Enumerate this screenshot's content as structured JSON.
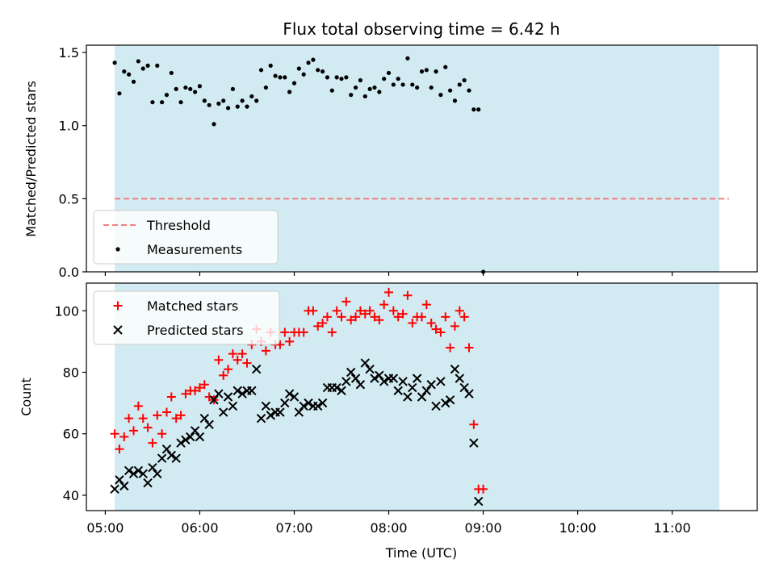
{
  "chart_data": [
    {
      "type": "scatter",
      "title": "Flux total observing time = 6.42 h",
      "xlabel": "",
      "ylabel": "Matched/Predicted stars",
      "ylim": [
        0,
        1.55
      ],
      "yticks": [
        0.0,
        0.5,
        1.0,
        1.5
      ],
      "ytick_labels": [
        "0.0",
        "0.5",
        "1.0",
        "1.5"
      ],
      "xlim": [
        "04:48",
        "11:54"
      ],
      "shaded_interval": [
        "05:06",
        "11:30"
      ],
      "shade_color": "#add8e6",
      "threshold": {
        "name": "Threshold",
        "value": 0.5,
        "x_range": [
          "05:06",
          "11:36"
        ],
        "color": "#f08080",
        "style": "dashed"
      },
      "legend": {
        "placement": "lower-left",
        "entries": [
          "Threshold",
          "Measurements"
        ]
      },
      "series": [
        {
          "name": "Measurements",
          "marker": "dot",
          "color": "#000000",
          "points": [
            [
              "05:06",
              1.43
            ],
            [
              "05:09",
              1.22
            ],
            [
              "05:12",
              1.37
            ],
            [
              "05:15",
              1.35
            ],
            [
              "05:18",
              1.3
            ],
            [
              "05:21",
              1.44
            ],
            [
              "05:24",
              1.39
            ],
            [
              "05:27",
              1.41
            ],
            [
              "05:30",
              1.16
            ],
            [
              "05:33",
              1.41
            ],
            [
              "05:36",
              1.16
            ],
            [
              "05:39",
              1.21
            ],
            [
              "05:42",
              1.36
            ],
            [
              "05:45",
              1.25
            ],
            [
              "05:48",
              1.16
            ],
            [
              "05:51",
              1.26
            ],
            [
              "05:54",
              1.25
            ],
            [
              "05:57",
              1.23
            ],
            [
              "06:00",
              1.27
            ],
            [
              "06:03",
              1.17
            ],
            [
              "06:06",
              1.14
            ],
            [
              "06:09",
              1.01
            ],
            [
              "06:12",
              1.15
            ],
            [
              "06:15",
              1.17
            ],
            [
              "06:18",
              1.12
            ],
            [
              "06:21",
              1.25
            ],
            [
              "06:24",
              1.13
            ],
            [
              "06:27",
              1.17
            ],
            [
              "06:30",
              1.13
            ],
            [
              "06:33",
              1.2
            ],
            [
              "06:36",
              1.17
            ],
            [
              "06:39",
              1.38
            ],
            [
              "06:42",
              1.26
            ],
            [
              "06:45",
              1.41
            ],
            [
              "06:48",
              1.34
            ],
            [
              "06:51",
              1.33
            ],
            [
              "06:54",
              1.33
            ],
            [
              "06:57",
              1.23
            ],
            [
              "07:00",
              1.29
            ],
            [
              "07:03",
              1.39
            ],
            [
              "07:06",
              1.35
            ],
            [
              "07:09",
              1.43
            ],
            [
              "07:12",
              1.45
            ],
            [
              "07:15",
              1.38
            ],
            [
              "07:18",
              1.37
            ],
            [
              "07:21",
              1.33
            ],
            [
              "07:24",
              1.24
            ],
            [
              "07:27",
              1.33
            ],
            [
              "07:30",
              1.32
            ],
            [
              "07:33",
              1.33
            ],
            [
              "07:36",
              1.21
            ],
            [
              "07:39",
              1.26
            ],
            [
              "07:42",
              1.31
            ],
            [
              "07:45",
              1.2
            ],
            [
              "07:48",
              1.25
            ],
            [
              "07:51",
              1.26
            ],
            [
              "07:54",
              1.23
            ],
            [
              "07:57",
              1.32
            ],
            [
              "08:00",
              1.36
            ],
            [
              "08:03",
              1.28
            ],
            [
              "08:06",
              1.32
            ],
            [
              "08:09",
              1.28
            ],
            [
              "08:12",
              1.46
            ],
            [
              "08:15",
              1.28
            ],
            [
              "08:18",
              1.26
            ],
            [
              "08:21",
              1.37
            ],
            [
              "08:24",
              1.38
            ],
            [
              "08:27",
              1.26
            ],
            [
              "08:30",
              1.37
            ],
            [
              "08:33",
              1.21
            ],
            [
              "08:36",
              1.4
            ],
            [
              "08:39",
              1.24
            ],
            [
              "08:42",
              1.17
            ],
            [
              "08:45",
              1.28
            ],
            [
              "08:48",
              1.31
            ],
            [
              "08:51",
              1.24
            ],
            [
              "08:54",
              1.11
            ],
            [
              "08:57",
              1.11
            ],
            [
              "09:00",
              0.0
            ]
          ]
        }
      ]
    },
    {
      "type": "scatter",
      "title": "",
      "xlabel": "Time (UTC)",
      "ylabel": "Count",
      "ylim": [
        35,
        109
      ],
      "yticks": [
        40,
        60,
        80,
        100
      ],
      "ytick_labels": [
        "40",
        "60",
        "80",
        "100"
      ],
      "xlim": [
        "04:48",
        "11:54"
      ],
      "xticks": [
        "05:00",
        "06:00",
        "07:00",
        "08:00",
        "09:00",
        "10:00",
        "11:00"
      ],
      "xtick_labels": [
        "05:00",
        "06:00",
        "07:00",
        "08:00",
        "09:00",
        "10:00",
        "11:00"
      ],
      "shaded_interval": [
        "05:06",
        "11:30"
      ],
      "shade_color": "#add8e6",
      "legend": {
        "placement": "upper-left",
        "entries": [
          "Matched stars",
          "Predicted stars"
        ]
      },
      "series": [
        {
          "name": "Matched stars",
          "marker": "plus",
          "color": "#ff0000",
          "points": [
            [
              "05:06",
              60
            ],
            [
              "05:09",
              55
            ],
            [
              "05:12",
              59
            ],
            [
              "05:15",
              65
            ],
            [
              "05:18",
              61
            ],
            [
              "05:21",
              69
            ],
            [
              "05:24",
              65
            ],
            [
              "05:27",
              62
            ],
            [
              "05:30",
              57
            ],
            [
              "05:33",
              66
            ],
            [
              "05:36",
              60
            ],
            [
              "05:39",
              67
            ],
            [
              "05:42",
              72
            ],
            [
              "05:45",
              65
            ],
            [
              "05:48",
              66
            ],
            [
              "05:51",
              73
            ],
            [
              "05:54",
              74
            ],
            [
              "05:57",
              74
            ],
            [
              "06:00",
              75
            ],
            [
              "06:03",
              76
            ],
            [
              "06:06",
              72
            ],
            [
              "06:09",
              71
            ],
            [
              "06:12",
              84
            ],
            [
              "06:15",
              79
            ],
            [
              "06:18",
              81
            ],
            [
              "06:21",
              86
            ],
            [
              "06:24",
              84
            ],
            [
              "06:27",
              86
            ],
            [
              "06:30",
              83
            ],
            [
              "06:33",
              89
            ],
            [
              "06:36",
              94
            ],
            [
              "06:39",
              90
            ],
            [
              "06:42",
              87
            ],
            [
              "06:45",
              93
            ],
            [
              "06:48",
              89
            ],
            [
              "06:51",
              89
            ],
            [
              "06:54",
              93
            ],
            [
              "06:57",
              90
            ],
            [
              "07:00",
              93
            ],
            [
              "07:03",
              93
            ],
            [
              "07:06",
              93
            ],
            [
              "07:09",
              100
            ],
            [
              "07:12",
              100
            ],
            [
              "07:15",
              95
            ],
            [
              "07:18",
              96
            ],
            [
              "07:21",
              98
            ],
            [
              "07:24",
              93
            ],
            [
              "07:27",
              100
            ],
            [
              "07:30",
              98
            ],
            [
              "07:33",
              103
            ],
            [
              "07:36",
              97
            ],
            [
              "07:39",
              98
            ],
            [
              "07:42",
              100
            ],
            [
              "07:45",
              99
            ],
            [
              "07:48",
              100
            ],
            [
              "07:51",
              98
            ],
            [
              "07:54",
              97
            ],
            [
              "07:57",
              102
            ],
            [
              "08:00",
              106
            ],
            [
              "08:03",
              100
            ],
            [
              "08:06",
              98
            ],
            [
              "08:09",
              99
            ],
            [
              "08:12",
              105
            ],
            [
              "08:15",
              96
            ],
            [
              "08:18",
              98
            ],
            [
              "08:21",
              98
            ],
            [
              "08:24",
              102
            ],
            [
              "08:27",
              96
            ],
            [
              "08:30",
              94
            ],
            [
              "08:33",
              93
            ],
            [
              "08:36",
              98
            ],
            [
              "08:39",
              88
            ],
            [
              "08:42",
              95
            ],
            [
              "08:45",
              100
            ],
            [
              "08:48",
              98
            ],
            [
              "08:51",
              88
            ],
            [
              "08:54",
              63
            ],
            [
              "08:57",
              42
            ],
            [
              "09:00",
              42
            ]
          ]
        },
        {
          "name": "Predicted stars",
          "marker": "x",
          "color": "#000000",
          "points": [
            [
              "05:06",
              42
            ],
            [
              "05:09",
              45
            ],
            [
              "05:12",
              43
            ],
            [
              "05:15",
              48
            ],
            [
              "05:18",
              47
            ],
            [
              "05:21",
              48
            ],
            [
              "05:24",
              47
            ],
            [
              "05:27",
              44
            ],
            [
              "05:30",
              49
            ],
            [
              "05:33",
              47
            ],
            [
              "05:36",
              52
            ],
            [
              "05:39",
              55
            ],
            [
              "05:42",
              53
            ],
            [
              "05:45",
              52
            ],
            [
              "05:48",
              57
            ],
            [
              "05:51",
              58
            ],
            [
              "05:54",
              59
            ],
            [
              "05:57",
              61
            ],
            [
              "06:00",
              59
            ],
            [
              "06:03",
              65
            ],
            [
              "06:06",
              63
            ],
            [
              "06:09",
              71
            ],
            [
              "06:12",
              73
            ],
            [
              "06:15",
              67
            ],
            [
              "06:18",
              72
            ],
            [
              "06:21",
              69
            ],
            [
              "06:24",
              74
            ],
            [
              "06:27",
              73
            ],
            [
              "06:30",
              74
            ],
            [
              "06:33",
              74
            ],
            [
              "06:36",
              81
            ],
            [
              "06:39",
              65
            ],
            [
              "06:42",
              69
            ],
            [
              "06:45",
              66
            ],
            [
              "06:48",
              67
            ],
            [
              "06:51",
              67
            ],
            [
              "06:54",
              70
            ],
            [
              "06:57",
              73
            ],
            [
              "07:00",
              72
            ],
            [
              "07:03",
              67
            ],
            [
              "07:06",
              69
            ],
            [
              "07:09",
              70
            ],
            [
              "07:12",
              69
            ],
            [
              "07:15",
              69
            ],
            [
              "07:18",
              70
            ],
            [
              "07:21",
              75
            ],
            [
              "07:24",
              75
            ],
            [
              "07:27",
              75
            ],
            [
              "07:30",
              74
            ],
            [
              "07:33",
              77
            ],
            [
              "07:36",
              80
            ],
            [
              "07:39",
              78
            ],
            [
              "07:42",
              76
            ],
            [
              "07:45",
              83
            ],
            [
              "07:48",
              81
            ],
            [
              "07:51",
              78
            ],
            [
              "07:54",
              79
            ],
            [
              "07:57",
              77
            ],
            [
              "08:00",
              78
            ],
            [
              "08:03",
              78
            ],
            [
              "08:06",
              74
            ],
            [
              "08:09",
              77
            ],
            [
              "08:12",
              72
            ],
            [
              "08:15",
              75
            ],
            [
              "08:18",
              78
            ],
            [
              "08:21",
              72
            ],
            [
              "08:24",
              74
            ],
            [
              "08:27",
              76
            ],
            [
              "08:30",
              69
            ],
            [
              "08:33",
              77
            ],
            [
              "08:36",
              70
            ],
            [
              "08:39",
              71
            ],
            [
              "08:42",
              81
            ],
            [
              "08:45",
              78
            ],
            [
              "08:48",
              75
            ],
            [
              "08:51",
              73
            ],
            [
              "08:54",
              57
            ],
            [
              "08:57",
              38
            ]
          ]
        }
      ]
    }
  ]
}
